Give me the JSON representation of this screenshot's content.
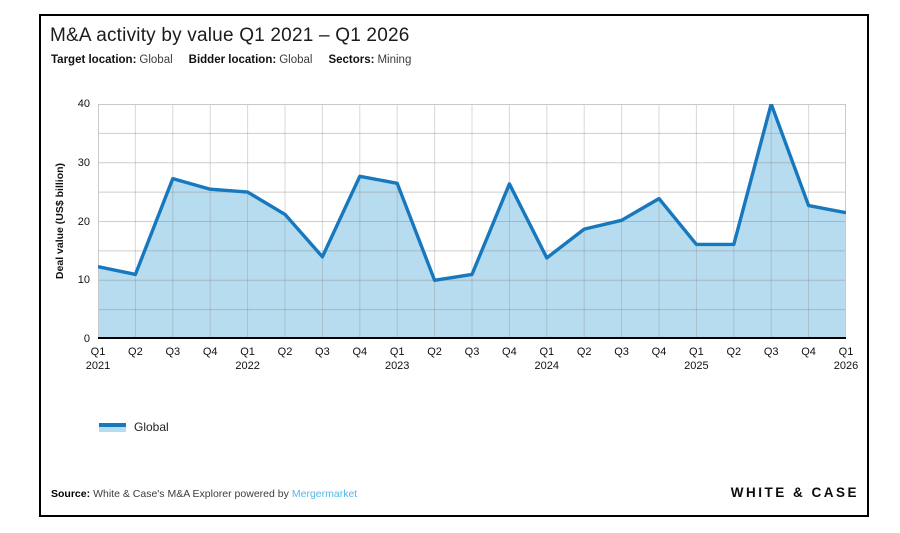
{
  "card": {
    "title": "M&A activity by value Q1 2021 – Q1 2026",
    "filters": [
      {
        "label": "Target location:",
        "value": "Global"
      },
      {
        "label": "Bidder location:",
        "value": "Global"
      },
      {
        "label": "Sectors:",
        "value": "Mining"
      }
    ],
    "legend": [
      {
        "label": "Global"
      }
    ],
    "footer": {
      "source_label": "Source:",
      "source_text": "White & Case's M&A Explorer powered by",
      "source_link": "Mergermarket",
      "logo": "WHITE & CASE"
    }
  },
  "chart_data": {
    "type": "area",
    "title": "M&A activity by value Q1 2021 – Q1 2026",
    "xlabel": "",
    "ylabel": "Deal value (US$ billion)",
    "x": [
      "Q1 2021",
      "Q2 2021",
      "Q3 2021",
      "Q4 2021",
      "Q1 2022",
      "Q2 2022",
      "Q3 2022",
      "Q4 2022",
      "Q1 2023",
      "Q2 2023",
      "Q3 2023",
      "Q4 2023",
      "Q1 2024",
      "Q2 2024",
      "Q3 2024",
      "Q4 2024",
      "Q1 2025",
      "Q2 2025",
      "Q3 2025",
      "Q4 2025",
      "Q1 2026"
    ],
    "series": [
      {
        "name": "Global",
        "values": [
          12.3,
          11.0,
          27.3,
          25.5,
          25.0,
          21.2,
          14.0,
          27.7,
          26.5,
          10.0,
          11.0,
          26.4,
          13.8,
          18.7,
          20.2,
          23.9,
          16.1,
          16.1,
          40.0,
          22.7,
          21.5
        ]
      }
    ],
    "ylim": [
      0,
      40
    ],
    "yticks": [
      0,
      10,
      20,
      30,
      40
    ],
    "grid_step": 5,
    "grid": true,
    "legend_position": "bottom-left",
    "colors": {
      "line": "#1778be",
      "fill": "#b8dcef",
      "grid": "#d2d2d2",
      "plot_border": "#c9c9c9",
      "axis": "#000000",
      "link": "#53b7e8"
    }
  }
}
